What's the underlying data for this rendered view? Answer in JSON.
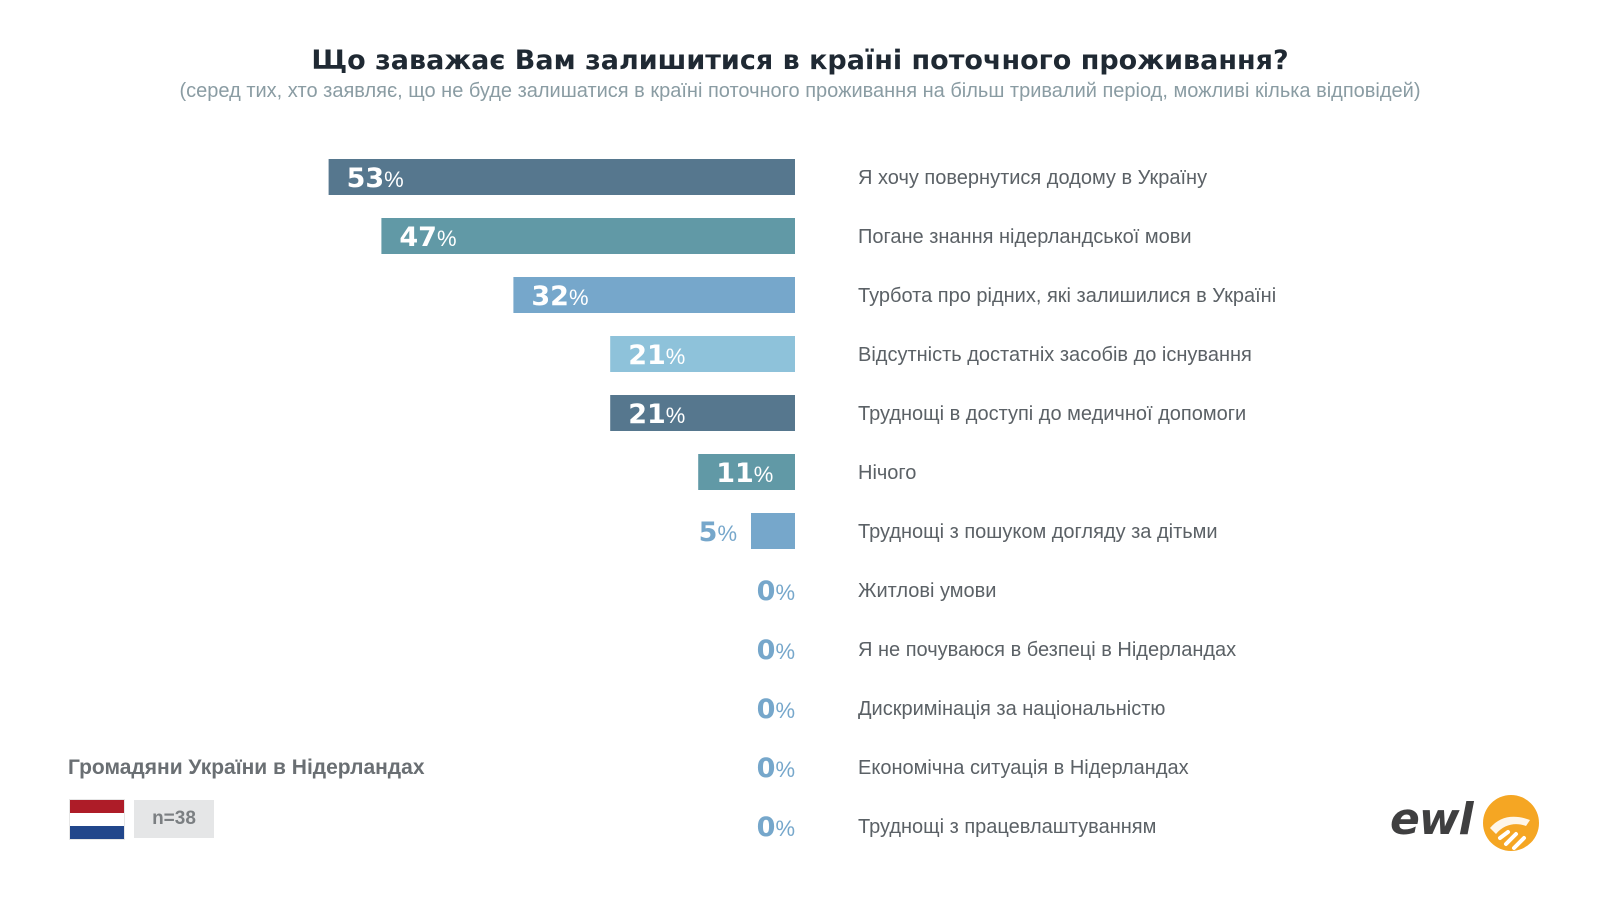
{
  "title": "Що заважає Вам залишитися в країні поточного проживання?",
  "subtitle": "(серед тих, хто заявляє, що не буде залишатися в країні поточного проживання на більш тривалий період, можливі кілька відповідей)",
  "group_label": "Громадяни України в Нідерландах",
  "sample_size": "n=38",
  "flag_icon": "netherlands-flag-icon",
  "flag_colors": [
    "#ae1c28",
    "#ffffff",
    "#21468b"
  ],
  "logo_text": "ewl",
  "logo_colors": [
    "#f5a623",
    "#e8731b"
  ],
  "chart_data": {
    "type": "bar",
    "orientation": "horizontal",
    "xlim": [
      0,
      100
    ],
    "value_suffix": "%",
    "categories": [
      "Я хочу повернутися додому в Україну",
      "Погане знання нідерландської мови",
      "Турбота про рідних, які залишилися в Україні",
      "Відсутність достатніх засобів до існування",
      "Труднощі в доступі до медичної допомоги",
      "Нічого",
      "Труднощі з пошуком догляду за дітьми",
      "Житлові умови",
      "Я не почуваюся в безпеці в Нідерландах",
      "Дискримінація за національністю",
      "Економічна ситуація в Нідерландах",
      "Труднощі з працевлаштуванням"
    ],
    "values": [
      53,
      47,
      32,
      21,
      21,
      11,
      5,
      0,
      0,
      0,
      0,
      0
    ],
    "bar_colors": [
      "#56778e",
      "#6199a6",
      "#76a7cb",
      "#8ec2da",
      "#56778e",
      "#6199a6",
      "#76a7cb",
      "#76a7cb",
      "#76a7cb",
      "#76a7cb",
      "#76a7cb",
      "#76a7cb"
    ],
    "outside_label_color": "#76a7cb",
    "inside_label_color": "#ffffff"
  }
}
